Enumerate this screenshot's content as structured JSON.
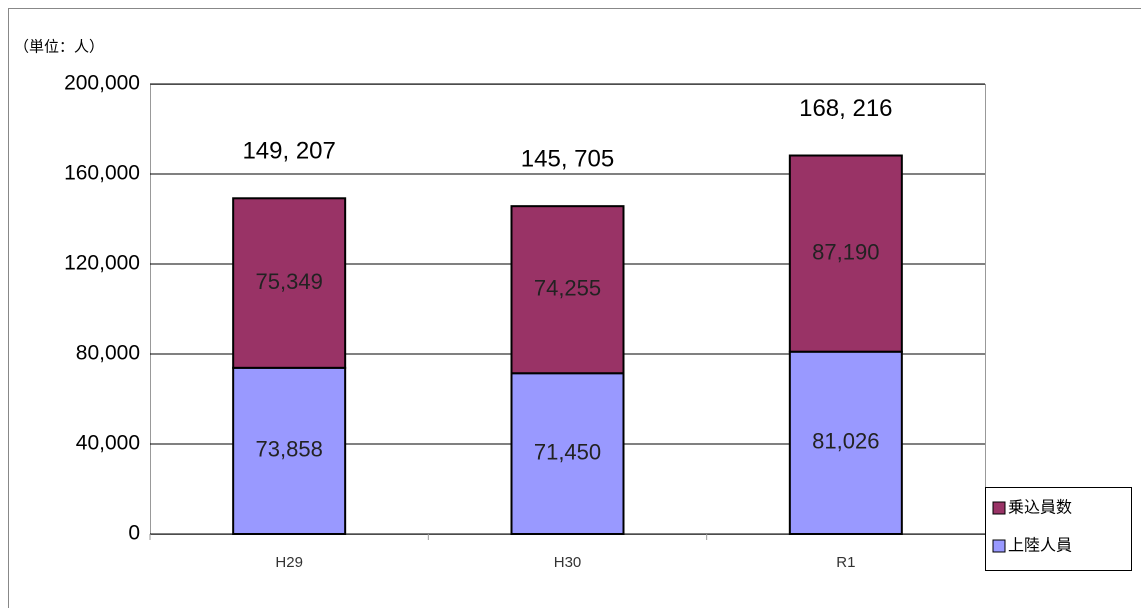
{
  "chart_data": {
    "type": "stacked_bar",
    "unit_label": "（単位：人）",
    "categories": [
      "H29",
      "H30",
      "R1"
    ],
    "series": [
      {
        "name": "上陸人員",
        "color": "#9999ff",
        "values": [
          73858,
          71450,
          81026
        ],
        "value_labels": [
          "73,858",
          "71,450",
          "81,026"
        ]
      },
      {
        "name": "乗込員数",
        "color": "#993366",
        "values": [
          75349,
          74255,
          87190
        ],
        "value_labels": [
          "75,349",
          "74,255",
          "87,190"
        ]
      }
    ],
    "totals": [
      149207,
      145705,
      168216
    ],
    "total_labels": [
      "149, 207",
      "145, 705",
      "168, 216"
    ],
    "ylim": [
      0,
      200000
    ],
    "yticks": [
      0,
      {
        "value": 40000,
        "label": "40,000"
      },
      {
        "value": 80000,
        "label": "80,000"
      },
      {
        "value": 120000,
        "label": "120,000"
      },
      {
        "value": 160000,
        "label": "160,000"
      },
      {
        "value": 200000,
        "label": "200,000"
      }
    ],
    "grid": true,
    "legend": "lower right"
  }
}
